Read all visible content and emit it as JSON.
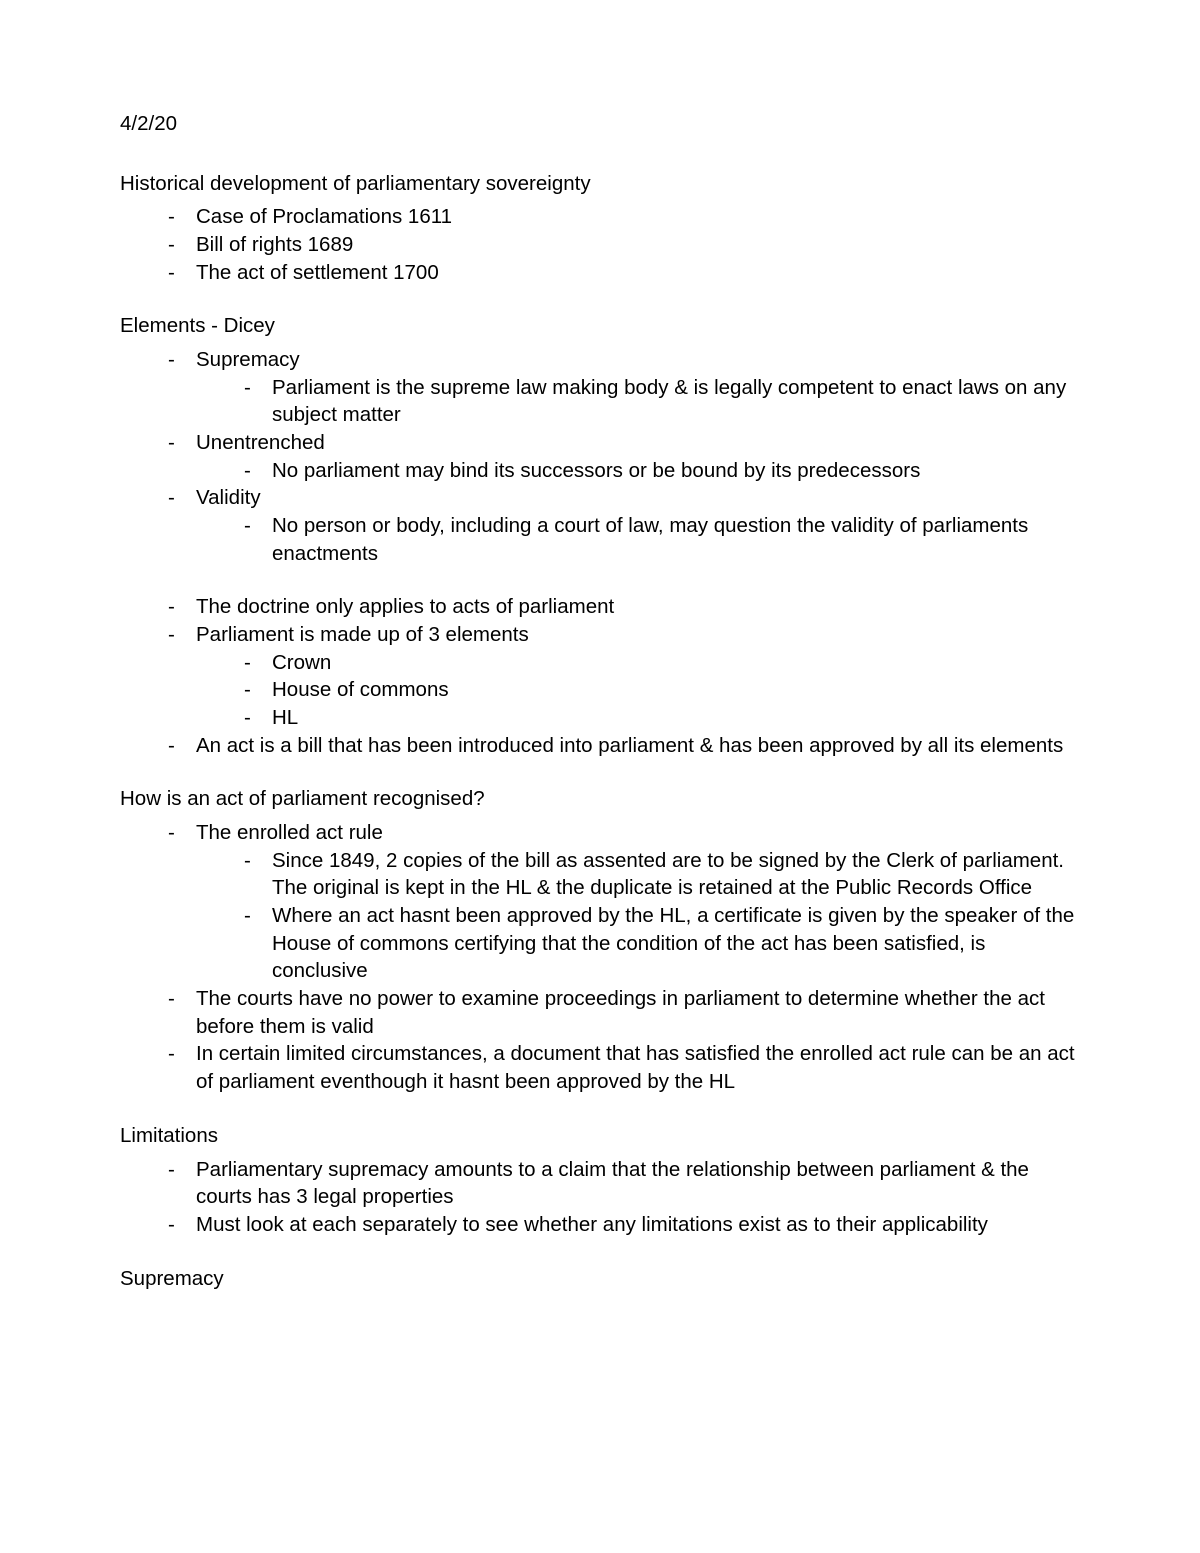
{
  "date": "4/2/20",
  "sections": {
    "historical": {
      "title": "Historical development of parliamentary sovereignty",
      "items": [
        "Case of Proclamations 1611",
        "Bill of rights 1689",
        "The act of settlement 1700"
      ]
    },
    "elements_dicey": {
      "title": "Elements - Dicey",
      "items": {
        "supremacy": {
          "label": "Supremacy",
          "sub": "Parliament is the supreme law making body & is legally competent to enact laws on any subject matter"
        },
        "unentrenched": {
          "label": "Unentrenched",
          "sub": "No parliament may bind its successors or be bound by its predecessors"
        },
        "validity": {
          "label": "Validity",
          "sub": "No person or body, including a court of law, may question the validity of parliaments enactments"
        },
        "doctrine": "The doctrine only applies to acts of parliament",
        "three_elements": {
          "label": "Parliament is made up of 3 elements",
          "subs": [
            "Crown",
            "House of commons",
            "HL"
          ]
        },
        "act_bill": "An act is a bill that has been introduced into parliament & has been approved by all its elements"
      }
    },
    "recognised": {
      "title": "How is an act of parliament recognised?",
      "items": {
        "enrolled": {
          "label": "The enrolled act rule",
          "subs": [
            "Since 1849, 2 copies of the bill as assented are to be signed by the Clerk of parliament. The original is kept in the HL & the duplicate is retained at the Public Records Office",
            "Where an act hasnt been approved by the HL, a certificate is given by the speaker of the House of commons certifying that the condition of the act has been satisfied, is conclusive"
          ]
        },
        "courts": "The courts have no power to examine proceedings in parliament to determine whether the act before them is valid",
        "limited": "In certain limited circumstances, a document that has satisfied the enrolled act rule can be an act of parliament eventhough it hasnt been approved by the HL"
      }
    },
    "limitations": {
      "title": "Limitations",
      "items": [
        "Parliamentary supremacy amounts to a claim that the relationship between parliament & the courts has 3 legal properties",
        "Must look at each separately to see whether any limitations exist as to their applicability"
      ]
    },
    "supremacy_section": {
      "title": "Supremacy"
    }
  }
}
